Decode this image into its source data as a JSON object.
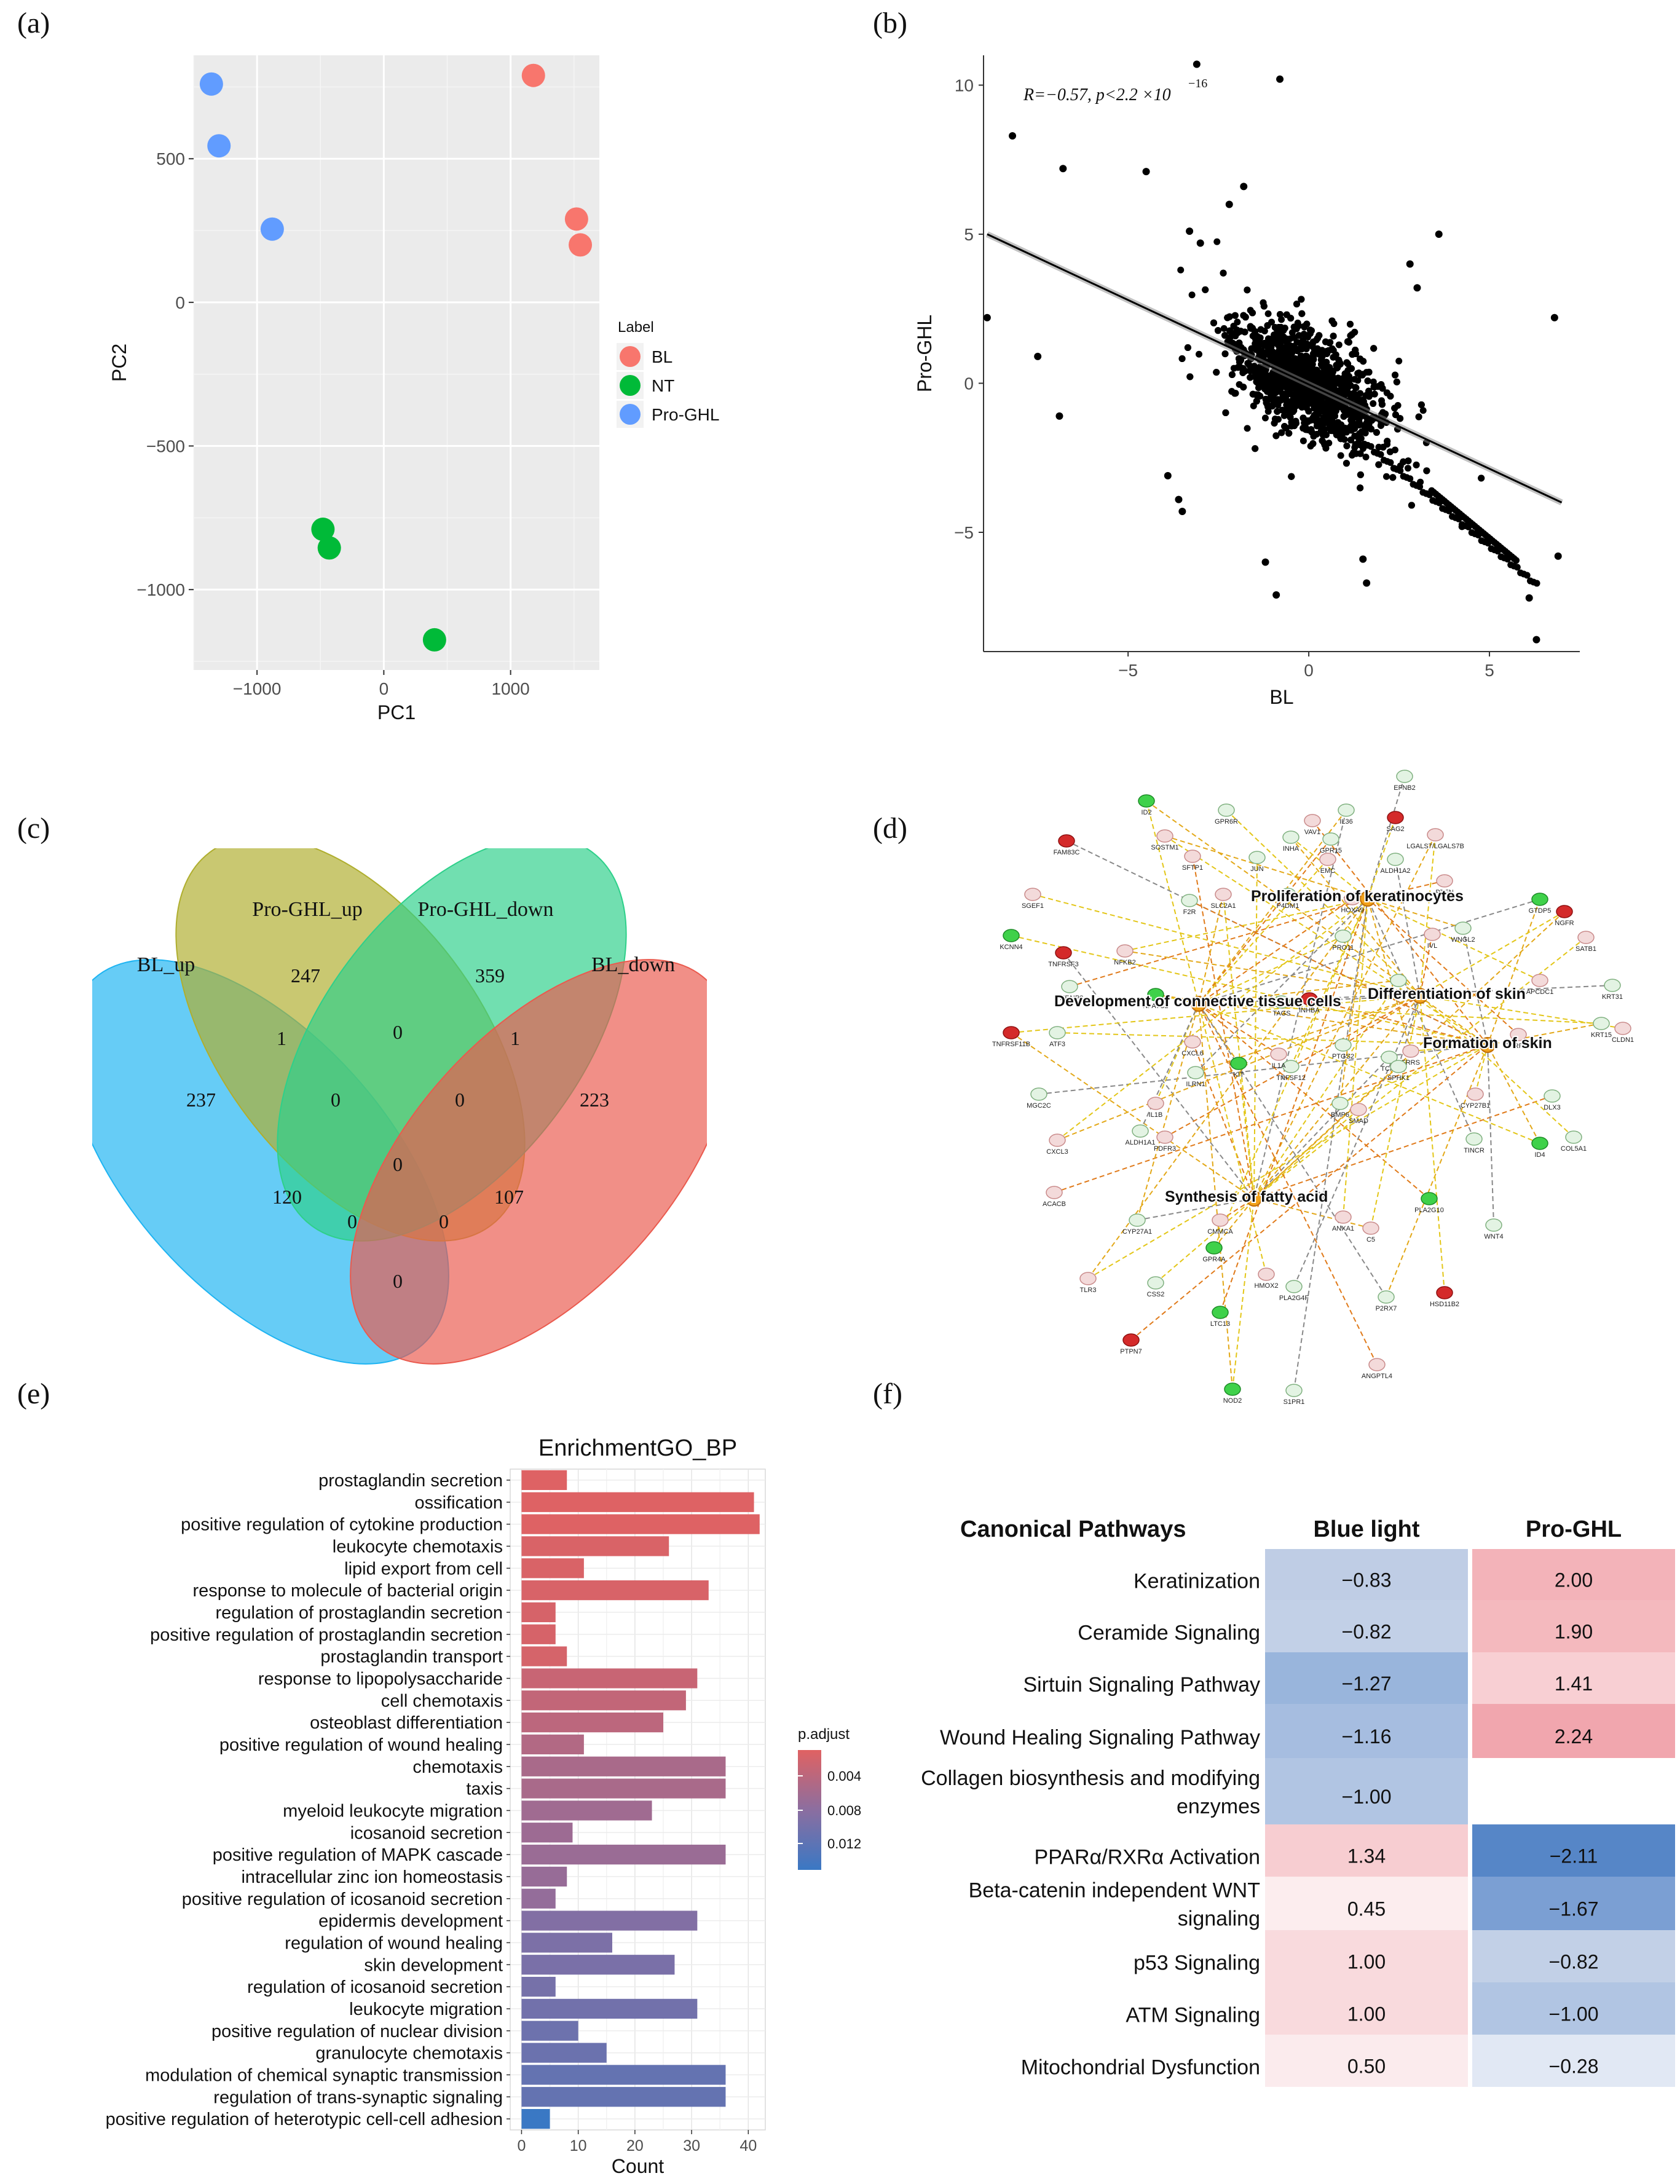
{
  "panels": {
    "a": "(a)",
    "b": "(b)",
    "c": "(c)",
    "d": "(d)",
    "e": "(e)",
    "f": "(f)"
  },
  "chart_data": [
    {
      "type": "scatter",
      "panel": "(a)",
      "xlabel": "PC1",
      "ylabel": "PC2",
      "xlim": [
        -1500,
        1700
      ],
      "ylim": [
        -1280,
        860
      ],
      "xticks": [
        -1000,
        0,
        1000
      ],
      "yticks": [
        500,
        0,
        -500,
        -1000
      ],
      "xtick_labels": [
        "−1000",
        "0",
        "1000"
      ],
      "ytick_labels": [
        "500",
        "0",
        "−500",
        "−1000"
      ],
      "legend_title": "Label",
      "series": [
        {
          "name": "BL",
          "color": "#F8766D",
          "points": [
            [
              1180,
              790
            ],
            [
              1520,
              290
            ],
            [
              1550,
              200
            ]
          ]
        },
        {
          "name": "NT",
          "color": "#00BA38",
          "points": [
            [
              -480,
              -790
            ],
            [
              -430,
              -855
            ],
            [
              400,
              -1175
            ]
          ]
        },
        {
          "name": "Pro-GHL",
          "color": "#619CFF",
          "points": [
            [
              -1360,
              760
            ],
            [
              -1300,
              545
            ],
            [
              -880,
              255
            ]
          ]
        }
      ]
    },
    {
      "type": "scatter",
      "panel": "(b)",
      "xlabel": "BL",
      "ylabel": "Pro-GHL",
      "xlim": [
        -9,
        7.5
      ],
      "ylim": [
        -9,
        11
      ],
      "xticks": [
        -5,
        0,
        5
      ],
      "yticks": [
        10,
        5,
        0,
        -5
      ],
      "xtick_labels": [
        "−5",
        "0",
        "5"
      ],
      "ytick_labels": [
        "10",
        "5",
        "0",
        "−5"
      ],
      "annotation": "R=−0.57, p<2.2 ×10",
      "annotation_exp": "−16",
      "fit_line": [
        [
          -8.9,
          5.0
        ],
        [
          7.0,
          -4.0
        ]
      ],
      "outliers": [
        [
          -8.2,
          8.3
        ],
        [
          -6.8,
          7.2
        ],
        [
          -4.5,
          7.1
        ],
        [
          -8.9,
          2.2
        ],
        [
          -7.5,
          0.9
        ],
        [
          -6.9,
          -1.1
        ],
        [
          -3.9,
          -3.1
        ],
        [
          -3.6,
          -3.9
        ],
        [
          -3.5,
          -4.3
        ],
        [
          6.8,
          2.2
        ],
        [
          6.9,
          -5.8
        ],
        [
          6.1,
          -7.2
        ],
        [
          6.3,
          -8.6
        ],
        [
          -1.2,
          -6.0
        ],
        [
          -0.9,
          -7.1
        ],
        [
          1.5,
          -5.9
        ],
        [
          1.6,
          -6.7
        ],
        [
          -3.3,
          5.1
        ],
        [
          -3.0,
          4.7
        ],
        [
          -2.2,
          6.0
        ],
        [
          -1.8,
          6.6
        ],
        [
          -0.8,
          10.2
        ],
        [
          -3.1,
          10.7
        ],
        [
          2.8,
          4.0
        ],
        [
          3.6,
          5.0
        ],
        [
          3.0,
          3.2
        ]
      ]
    },
    {
      "type": "venn",
      "panel": "(c)",
      "sets": [
        "BL_up",
        "Pro-GHL_up",
        "Pro-GHL_down",
        "BL_down"
      ],
      "colors": [
        "#1EB4F2",
        "#AFAE2E",
        "#2ED08A",
        "#EA5A4E"
      ],
      "regions": {
        "BL_up_only": "237",
        "ProGHL_up_only": "247",
        "ProGHL_down_only": "359",
        "BL_down_only": "223",
        "BLup_ProGHLup": "1",
        "ProGHLup_ProGHLdown": "0",
        "ProGHLdown_BLdown": "1",
        "BLup_ProGHLdown": "120",
        "ProGHLup_BLdown": "107",
        "BLup_BLdown": "0",
        "BLup_ProGHLup_ProGHLdown": "0",
        "ProGHLup_ProGHLdown_BLdown": "0",
        "BLup_ProGHLdown_BLdown": "0",
        "BLup_ProGHLup_BLdown": "0",
        "all": "0"
      }
    },
    {
      "type": "network",
      "panel": "(d)",
      "hubs": [
        "Proliferation of keratinocytes",
        "Development of connective tissue cells",
        "Differentiation of skin",
        "Formation of skin",
        "Synthesis of fatty acid"
      ],
      "genes": [
        "EFNB2",
        "ID2",
        "GPR6R",
        "VAV1",
        "IL36",
        "SAG2",
        "GPR15",
        "LGALS7/LGALS7B",
        "FAM83C",
        "SFTP1",
        "INHA",
        "EMC",
        "ALDH1A2",
        "SOSTM1",
        "JUN",
        "PTEN",
        "GTDP5",
        "SGEF1",
        "F2R",
        "SLC2A1",
        "P4DM1",
        "HOXA9",
        "NGFR",
        "KCNN4",
        "TNFRSF3",
        "NFKB2",
        "PRO11",
        "IVL",
        "WNGL2",
        "SATB1",
        "TNFAIP3",
        "NFATC2",
        "TAGS",
        "INHBA",
        "INSR",
        "APCDC1",
        "KRT31",
        "TNFRSF11B",
        "ATF3",
        "CXCL6",
        "ILRN1",
        "IL1B",
        "PTGS2",
        "FRRS",
        "TCF4",
        "SPRR1A",
        "KRT15",
        "CLDN1",
        "MGC2C",
        "KIT",
        "TNFSF12",
        "IL1A",
        "SPHK1",
        "CYP27B1",
        "DLX3",
        "CXCL3",
        "ALDH1A1",
        "PDFR3",
        "BMP6",
        "SMAD",
        "TINCR",
        "ID4",
        "COL5A1",
        "ACACB",
        "CYP27A1",
        "ANXA1",
        "PLA2G10",
        "C5",
        "WNT4",
        "CMMCA",
        "GPR4A",
        "HMOX2",
        "PLA2G4F",
        "TLR3",
        "CSS2",
        "LTC13",
        "P2RX7",
        "HSD11B2",
        "PTPN7",
        "NOD2",
        "S1PR1",
        "ANGPTL4"
      ]
    },
    {
      "type": "bar",
      "orientation": "horizontal",
      "panel": "(e)",
      "title": "EnrichmentGO_BP",
      "xlabel": "Count",
      "xlim": [
        -2,
        43
      ],
      "xticks": [
        0,
        10,
        20,
        30,
        40
      ],
      "legend_title": "p.adjust",
      "legend_ticks": [
        "0.004",
        "0.008",
        "0.012"
      ],
      "categories": [
        "prostaglandin secretion",
        "ossification",
        "positive regulation of cytokine production",
        "leukocyte chemotaxis",
        "lipid export from cell",
        "response to molecule of bacterial origin",
        "regulation of prostaglandin secretion",
        "positive regulation of prostaglandin secretion",
        "prostaglandin transport",
        "response to lipopolysaccharide",
        "cell chemotaxis",
        "osteoblast differentiation",
        "positive regulation of wound healing",
        "chemotaxis",
        "taxis",
        "myeloid leukocyte migration",
        "icosanoid secretion",
        "positive regulation of MAPK cascade",
        "intracellular zinc ion homeostasis",
        "positive regulation of icosanoid secretion",
        "epidermis development",
        "regulation of wound healing",
        "skin development",
        "regulation of icosanoid secretion",
        "leukocyte migration",
        "positive regulation of nuclear division",
        "granulocyte chemotaxis",
        "modulation of chemical synaptic transmission",
        "regulation of trans-synaptic signaling",
        "positive regulation of heterotypic cell-cell adhesion"
      ],
      "values": [
        8,
        41,
        42,
        26,
        11,
        33,
        6,
        6,
        8,
        31,
        29,
        25,
        11,
        36,
        36,
        23,
        9,
        36,
        8,
        6,
        31,
        16,
        27,
        6,
        31,
        10,
        15,
        36,
        36,
        5
      ],
      "p_adjust": [
        0.0012,
        0.0012,
        0.0012,
        0.0016,
        0.0016,
        0.0017,
        0.0018,
        0.0018,
        0.0019,
        0.003,
        0.0035,
        0.004,
        0.0048,
        0.0055,
        0.0055,
        0.0063,
        0.0065,
        0.0068,
        0.007,
        0.0073,
        0.0088,
        0.0093,
        0.0095,
        0.0098,
        0.0102,
        0.0106,
        0.0108,
        0.0114,
        0.0114,
        0.015
      ]
    },
    {
      "type": "heatmap",
      "panel": "(f)",
      "header": "Canonical Pathways",
      "columns": [
        "Blue light",
        "Pro-GHL"
      ],
      "rows": [
        {
          "name": [
            "Keratinization"
          ],
          "values": [
            "−0.83",
            "2.00"
          ],
          "colors": [
            "#bfcde5",
            "#f3b3b9"
          ]
        },
        {
          "name": [
            "Ceramide Signaling"
          ],
          "values": [
            "−0.82",
            "1.90"
          ],
          "colors": [
            "#c2d0e7",
            "#f4b9be"
          ]
        },
        {
          "name": [
            "Sirtuin Signaling Pathway"
          ],
          "values": [
            "−1.27",
            "1.41"
          ],
          "colors": [
            "#99b5dc",
            "#f8cfd3"
          ]
        },
        {
          "name": [
            "Wound Healing Signaling Pathway"
          ],
          "values": [
            "−1.16",
            "2.24"
          ],
          "colors": [
            "#a6bde0",
            "#f1a6ae"
          ]
        },
        {
          "name": [
            "Collagen biosynthesis and modifying",
            "enzymes"
          ],
          "values": [
            "−1.00",
            ""
          ],
          "colors": [
            "#b1c5e3",
            "#ffffff"
          ]
        },
        {
          "name": [
            "PPARα/RXRα Activation"
          ],
          "values": [
            "1.34",
            "−2.11"
          ],
          "colors": [
            "#f7cdd1",
            "#5686c7"
          ]
        },
        {
          "name": [
            "Beta-catenin independent WNT",
            "signaling"
          ],
          "values": [
            "0.45",
            "−1.67"
          ],
          "colors": [
            "#fcedee",
            "#7b9fd3"
          ]
        },
        {
          "name": [
            "p53 Signaling"
          ],
          "values": [
            "1.00",
            "−0.82"
          ],
          "colors": [
            "#f9dadd",
            "#c2d0e7"
          ]
        },
        {
          "name": [
            "ATM Signaling"
          ],
          "values": [
            "1.00",
            "−1.00"
          ],
          "colors": [
            "#f9dadd",
            "#b1c5e3"
          ]
        },
        {
          "name": [
            "Mitochondrial Dysfunction"
          ],
          "values": [
            "0.50",
            "−0.28"
          ],
          "colors": [
            "#fbebed",
            "#e1e8f4"
          ]
        }
      ]
    }
  ]
}
